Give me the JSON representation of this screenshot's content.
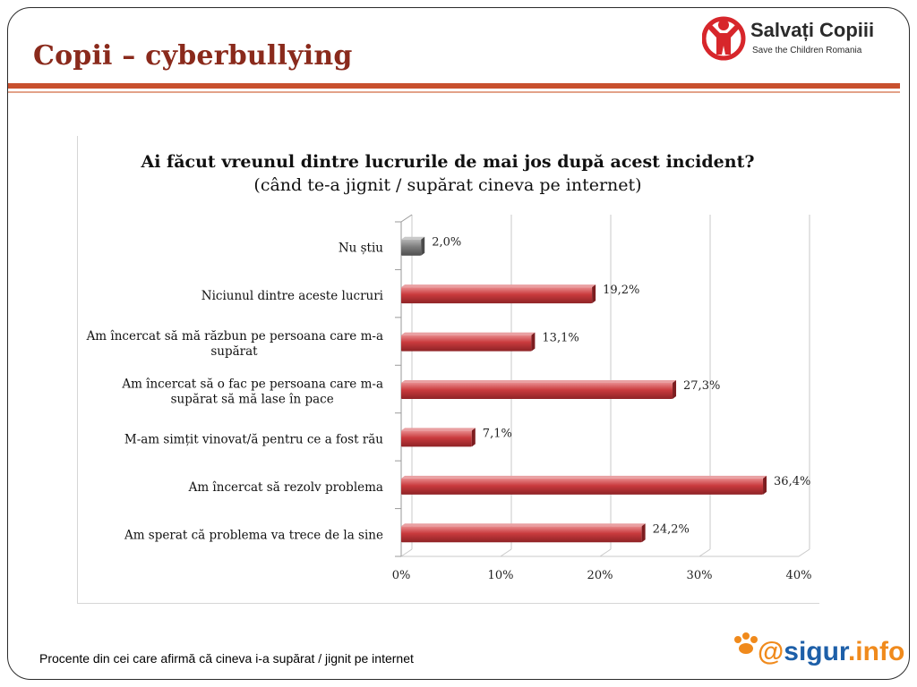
{
  "slide": {
    "title": "Copii – cyberbullying",
    "footnote": "Procente din cei care afirmă că cineva i-a supărat / jignit pe internet"
  },
  "logos": {
    "main_name": "Salvați Copiii",
    "main_sub": "Save the Children Romania",
    "sigur_at": "@",
    "sigur_name": "sigur",
    "sigur_tld": ".info"
  },
  "colors": {
    "title": "#8a2a1c",
    "rule": "#c8502e",
    "bar_red": "#c0393c",
    "bar_gray": "#7a7a7a",
    "logo_red": "#d7262b",
    "sigur_orange": "#f08a1c",
    "sigur_blue": "#1d5fa8"
  },
  "chart_data": {
    "type": "bar",
    "orientation": "horizontal",
    "title": "Ai făcut vreunul dintre lucrurile de mai jos după acest incident?",
    "subtitle": "(când te-a jignit / supărat cineva  pe internet)",
    "categories": [
      "Nu știu",
      "Niciunul dintre aceste lucruri",
      "Am încercat să mă răzbun pe persoana care m-a supărat",
      "Am încercat să o fac pe persoana care m-a supărat să mă lase în pace",
      "M-am simțit vinovat/ă pentru ce a fost rău",
      "Am încercat să rezolv problema",
      "Am sperat că problema va trece de la sine"
    ],
    "category_lines": [
      [
        "Nu știu"
      ],
      [
        "Niciunul dintre aceste lucruri"
      ],
      [
        "Am încercat să mă răzbun pe persoana care m-a",
        "supărat"
      ],
      [
        "Am încercat să o fac pe persoana care m-a",
        "supărat să mă lase în pace"
      ],
      [
        "M-am simțit vinovat/ă pentru ce a fost rău"
      ],
      [
        "Am încercat să rezolv problema"
      ],
      [
        "Am sperat că problema va trece de la sine"
      ]
    ],
    "values": [
      2.0,
      19.2,
      13.1,
      27.3,
      7.1,
      36.4,
      24.2
    ],
    "value_labels": [
      "2,0%",
      "19,2%",
      "13,1%",
      "27,3%",
      "7,1%",
      "36,4%",
      "24,2%"
    ],
    "bar_colors": [
      "#7a7a7a",
      "#c0393c",
      "#c0393c",
      "#c0393c",
      "#c0393c",
      "#c0393c",
      "#c0393c"
    ],
    "xlim": [
      0,
      40
    ],
    "xticks": [
      "0%",
      "10%",
      "20%",
      "30%",
      "40%"
    ],
    "grid": true,
    "legend": "none"
  }
}
